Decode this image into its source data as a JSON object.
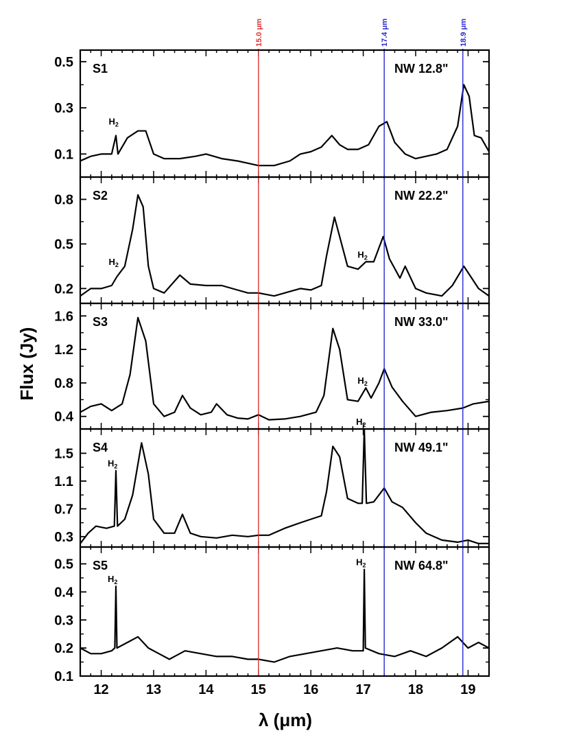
{
  "chart_data": {
    "type": "line",
    "xlabel": "λ (μm)",
    "ylabel": "Flux (Jy)",
    "xlim": [
      11.6,
      19.4
    ],
    "xticks": [
      12,
      13,
      14,
      15,
      16,
      17,
      18,
      19
    ],
    "reference_lines": [
      {
        "x": 15.0,
        "label": "15.0 μm",
        "color": "#e03030"
      },
      {
        "x": 17.4,
        "label": "17.4 μm",
        "color": "#2828d0"
      },
      {
        "x": 18.9,
        "label": "18.9 μm",
        "color": "#2828d0"
      }
    ],
    "panels": [
      {
        "label": "S1",
        "annotation": "NW 12.8\"",
        "ylim": [
          0.0,
          0.55
        ],
        "yticks": [
          0.1,
          0.3,
          0.5
        ],
        "tick_labels": [
          "0.1",
          "0.3",
          "0.5"
        ],
        "h2_markers": [
          {
            "x": 12.3,
            "y": 0.21,
            "text": "H2"
          }
        ],
        "series": [
          {
            "points": [
              [
                11.6,
                0.07
              ],
              [
                11.8,
                0.09
              ],
              [
                12.0,
                0.1
              ],
              [
                12.2,
                0.1
              ],
              [
                12.28,
                0.18
              ],
              [
                12.32,
                0.1
              ],
              [
                12.5,
                0.17
              ],
              [
                12.7,
                0.2
              ],
              [
                12.85,
                0.2
              ],
              [
                13.0,
                0.1
              ],
              [
                13.2,
                0.08
              ],
              [
                13.5,
                0.08
              ],
              [
                13.8,
                0.09
              ],
              [
                14.0,
                0.1
              ],
              [
                14.3,
                0.08
              ],
              [
                14.6,
                0.07
              ],
              [
                14.8,
                0.06
              ],
              [
                15.0,
                0.05
              ],
              [
                15.3,
                0.05
              ],
              [
                15.6,
                0.07
              ],
              [
                15.8,
                0.1
              ],
              [
                16.0,
                0.11
              ],
              [
                16.2,
                0.13
              ],
              [
                16.4,
                0.18
              ],
              [
                16.55,
                0.14
              ],
              [
                16.7,
                0.12
              ],
              [
                16.9,
                0.12
              ],
              [
                17.1,
                0.14
              ],
              [
                17.3,
                0.22
              ],
              [
                17.45,
                0.24
              ],
              [
                17.6,
                0.15
              ],
              [
                17.8,
                0.1
              ],
              [
                18.0,
                0.08
              ],
              [
                18.2,
                0.09
              ],
              [
                18.4,
                0.1
              ],
              [
                18.6,
                0.12
              ],
              [
                18.8,
                0.22
              ],
              [
                18.92,
                0.4
              ],
              [
                19.02,
                0.35
              ],
              [
                19.12,
                0.18
              ],
              [
                19.25,
                0.17
              ],
              [
                19.4,
                0.11
              ]
            ]
          }
        ]
      },
      {
        "label": "S2",
        "annotation": "NW 22.2\"",
        "ylim": [
          0.1,
          0.95
        ],
        "yticks": [
          0.2,
          0.5,
          0.8
        ],
        "tick_labels": [
          "0.2",
          "0.5",
          "0.8"
        ],
        "h2_markers": [
          {
            "x": 12.3,
            "y": 0.33,
            "text": "H2"
          },
          {
            "x": 17.05,
            "y": 0.38,
            "text": "H2"
          }
        ],
        "series": [
          {
            "points": [
              [
                11.6,
                0.15
              ],
              [
                11.8,
                0.2
              ],
              [
                12.0,
                0.2
              ],
              [
                12.2,
                0.22
              ],
              [
                12.3,
                0.28
              ],
              [
                12.45,
                0.35
              ],
              [
                12.6,
                0.6
              ],
              [
                12.7,
                0.83
              ],
              [
                12.8,
                0.75
              ],
              [
                12.9,
                0.35
              ],
              [
                13.0,
                0.2
              ],
              [
                13.2,
                0.17
              ],
              [
                13.5,
                0.29
              ],
              [
                13.7,
                0.23
              ],
              [
                14.0,
                0.22
              ],
              [
                14.3,
                0.22
              ],
              [
                14.6,
                0.19
              ],
              [
                14.8,
                0.17
              ],
              [
                15.0,
                0.17
              ],
              [
                15.3,
                0.15
              ],
              [
                15.6,
                0.18
              ],
              [
                15.8,
                0.2
              ],
              [
                16.0,
                0.19
              ],
              [
                16.2,
                0.22
              ],
              [
                16.3,
                0.42
              ],
              [
                16.45,
                0.68
              ],
              [
                16.55,
                0.55
              ],
              [
                16.7,
                0.35
              ],
              [
                16.9,
                0.33
              ],
              [
                17.05,
                0.38
              ],
              [
                17.2,
                0.38
              ],
              [
                17.38,
                0.55
              ],
              [
                17.5,
                0.4
              ],
              [
                17.7,
                0.27
              ],
              [
                17.8,
                0.35
              ],
              [
                18.0,
                0.2
              ],
              [
                18.2,
                0.17
              ],
              [
                18.5,
                0.15
              ],
              [
                18.7,
                0.22
              ],
              [
                18.92,
                0.35
              ],
              [
                19.05,
                0.28
              ],
              [
                19.2,
                0.2
              ],
              [
                19.4,
                0.15
              ]
            ]
          }
        ]
      },
      {
        "label": "S3",
        "annotation": "NW 33.0\"",
        "ylim": [
          0.25,
          1.75
        ],
        "yticks": [
          0.4,
          0.8,
          1.2,
          1.6
        ],
        "tick_labels": [
          "0.4",
          "0.8",
          "1.2",
          "1.6"
        ],
        "h2_markers": [
          {
            "x": 17.05,
            "y": 0.74,
            "text": "H2"
          }
        ],
        "series": [
          {
            "points": [
              [
                11.6,
                0.45
              ],
              [
                11.8,
                0.52
              ],
              [
                12.0,
                0.55
              ],
              [
                12.2,
                0.47
              ],
              [
                12.4,
                0.55
              ],
              [
                12.55,
                0.9
              ],
              [
                12.7,
                1.58
              ],
              [
                12.85,
                1.3
              ],
              [
                13.0,
                0.55
              ],
              [
                13.2,
                0.4
              ],
              [
                13.4,
                0.45
              ],
              [
                13.55,
                0.65
              ],
              [
                13.7,
                0.5
              ],
              [
                13.9,
                0.42
              ],
              [
                14.1,
                0.45
              ],
              [
                14.2,
                0.55
              ],
              [
                14.4,
                0.42
              ],
              [
                14.6,
                0.38
              ],
              [
                14.8,
                0.37
              ],
              [
                15.0,
                0.42
              ],
              [
                15.2,
                0.36
              ],
              [
                15.5,
                0.37
              ],
              [
                15.8,
                0.4
              ],
              [
                16.1,
                0.45
              ],
              [
                16.25,
                0.65
              ],
              [
                16.42,
                1.45
              ],
              [
                16.55,
                1.2
              ],
              [
                16.7,
                0.6
              ],
              [
                16.9,
                0.58
              ],
              [
                17.05,
                0.74
              ],
              [
                17.15,
                0.62
              ],
              [
                17.3,
                0.8
              ],
              [
                17.4,
                0.97
              ],
              [
                17.55,
                0.75
              ],
              [
                17.75,
                0.58
              ],
              [
                18.0,
                0.4
              ],
              [
                18.3,
                0.45
              ],
              [
                18.6,
                0.47
              ],
              [
                18.9,
                0.5
              ],
              [
                19.1,
                0.55
              ],
              [
                19.4,
                0.58
              ]
            ]
          }
        ]
      },
      {
        "label": "S4",
        "annotation": "NW 49.1\"",
        "ylim": [
          0.15,
          1.85
        ],
        "yticks": [
          0.3,
          0.7,
          1.1,
          1.5
        ],
        "tick_labels": [
          "0.3",
          "0.7",
          "1.1",
          "1.5"
        ],
        "h2_markers": [
          {
            "x": 12.28,
            "y": 1.25,
            "text": "H2"
          },
          {
            "x": 17.02,
            "y": 1.85,
            "text": "H2"
          }
        ],
        "series": [
          {
            "points": [
              [
                11.6,
                0.2
              ],
              [
                11.75,
                0.35
              ],
              [
                11.9,
                0.45
              ],
              [
                12.1,
                0.42
              ],
              [
                12.25,
                0.45
              ],
              [
                12.28,
                1.25
              ],
              [
                12.31,
                0.45
              ],
              [
                12.45,
                0.55
              ],
              [
                12.6,
                0.9
              ],
              [
                12.77,
                1.65
              ],
              [
                12.9,
                1.2
              ],
              [
                13.0,
                0.55
              ],
              [
                13.2,
                0.35
              ],
              [
                13.4,
                0.35
              ],
              [
                13.55,
                0.62
              ],
              [
                13.7,
                0.35
              ],
              [
                13.9,
                0.3
              ],
              [
                14.2,
                0.28
              ],
              [
                14.5,
                0.32
              ],
              [
                14.8,
                0.3
              ],
              [
                15.0,
                0.32
              ],
              [
                15.2,
                0.32
              ],
              [
                15.5,
                0.42
              ],
              [
                15.8,
                0.5
              ],
              [
                16.0,
                0.55
              ],
              [
                16.2,
                0.6
              ],
              [
                16.3,
                0.95
              ],
              [
                16.42,
                1.6
              ],
              [
                16.55,
                1.45
              ],
              [
                16.7,
                0.85
              ],
              [
                16.9,
                0.78
              ],
              [
                16.98,
                0.78
              ],
              [
                17.02,
                1.85
              ],
              [
                17.06,
                0.78
              ],
              [
                17.2,
                0.8
              ],
              [
                17.4,
                1.0
              ],
              [
                17.55,
                0.8
              ],
              [
                17.75,
                0.72
              ],
              [
                18.0,
                0.5
              ],
              [
                18.2,
                0.35
              ],
              [
                18.5,
                0.25
              ],
              [
                18.8,
                0.22
              ],
              [
                19.0,
                0.25
              ],
              [
                19.2,
                0.2
              ],
              [
                19.4,
                0.2
              ]
            ]
          }
        ]
      },
      {
        "label": "S5",
        "annotation": "NW 64.8\"",
        "ylim": [
          0.1,
          0.56
        ],
        "yticks": [
          0.1,
          0.2,
          0.3,
          0.4,
          0.5
        ],
        "tick_labels": [
          "0.1",
          "0.2",
          "0.3",
          "0.4",
          "0.5"
        ],
        "h2_markers": [
          {
            "x": 12.28,
            "y": 0.42,
            "text": "H2"
          },
          {
            "x": 17.02,
            "y": 0.48,
            "text": "H2"
          }
        ],
        "series": [
          {
            "points": [
              [
                11.6,
                0.2
              ],
              [
                11.8,
                0.18
              ],
              [
                12.0,
                0.18
              ],
              [
                12.2,
                0.19
              ],
              [
                12.26,
                0.2
              ],
              [
                12.28,
                0.42
              ],
              [
                12.3,
                0.2
              ],
              [
                12.5,
                0.22
              ],
              [
                12.7,
                0.24
              ],
              [
                12.9,
                0.2
              ],
              [
                13.1,
                0.18
              ],
              [
                13.3,
                0.16
              ],
              [
                13.6,
                0.19
              ],
              [
                13.9,
                0.18
              ],
              [
                14.2,
                0.17
              ],
              [
                14.5,
                0.17
              ],
              [
                14.8,
                0.16
              ],
              [
                15.0,
                0.16
              ],
              [
                15.3,
                0.15
              ],
              [
                15.6,
                0.17
              ],
              [
                15.9,
                0.18
              ],
              [
                16.2,
                0.19
              ],
              [
                16.5,
                0.2
              ],
              [
                16.8,
                0.19
              ],
              [
                17.0,
                0.19
              ],
              [
                17.02,
                0.48
              ],
              [
                17.04,
                0.2
              ],
              [
                17.3,
                0.18
              ],
              [
                17.6,
                0.17
              ],
              [
                17.9,
                0.19
              ],
              [
                18.2,
                0.17
              ],
              [
                18.5,
                0.2
              ],
              [
                18.8,
                0.24
              ],
              [
                19.0,
                0.2
              ],
              [
                19.2,
                0.22
              ],
              [
                19.4,
                0.2
              ]
            ]
          }
        ]
      }
    ]
  }
}
